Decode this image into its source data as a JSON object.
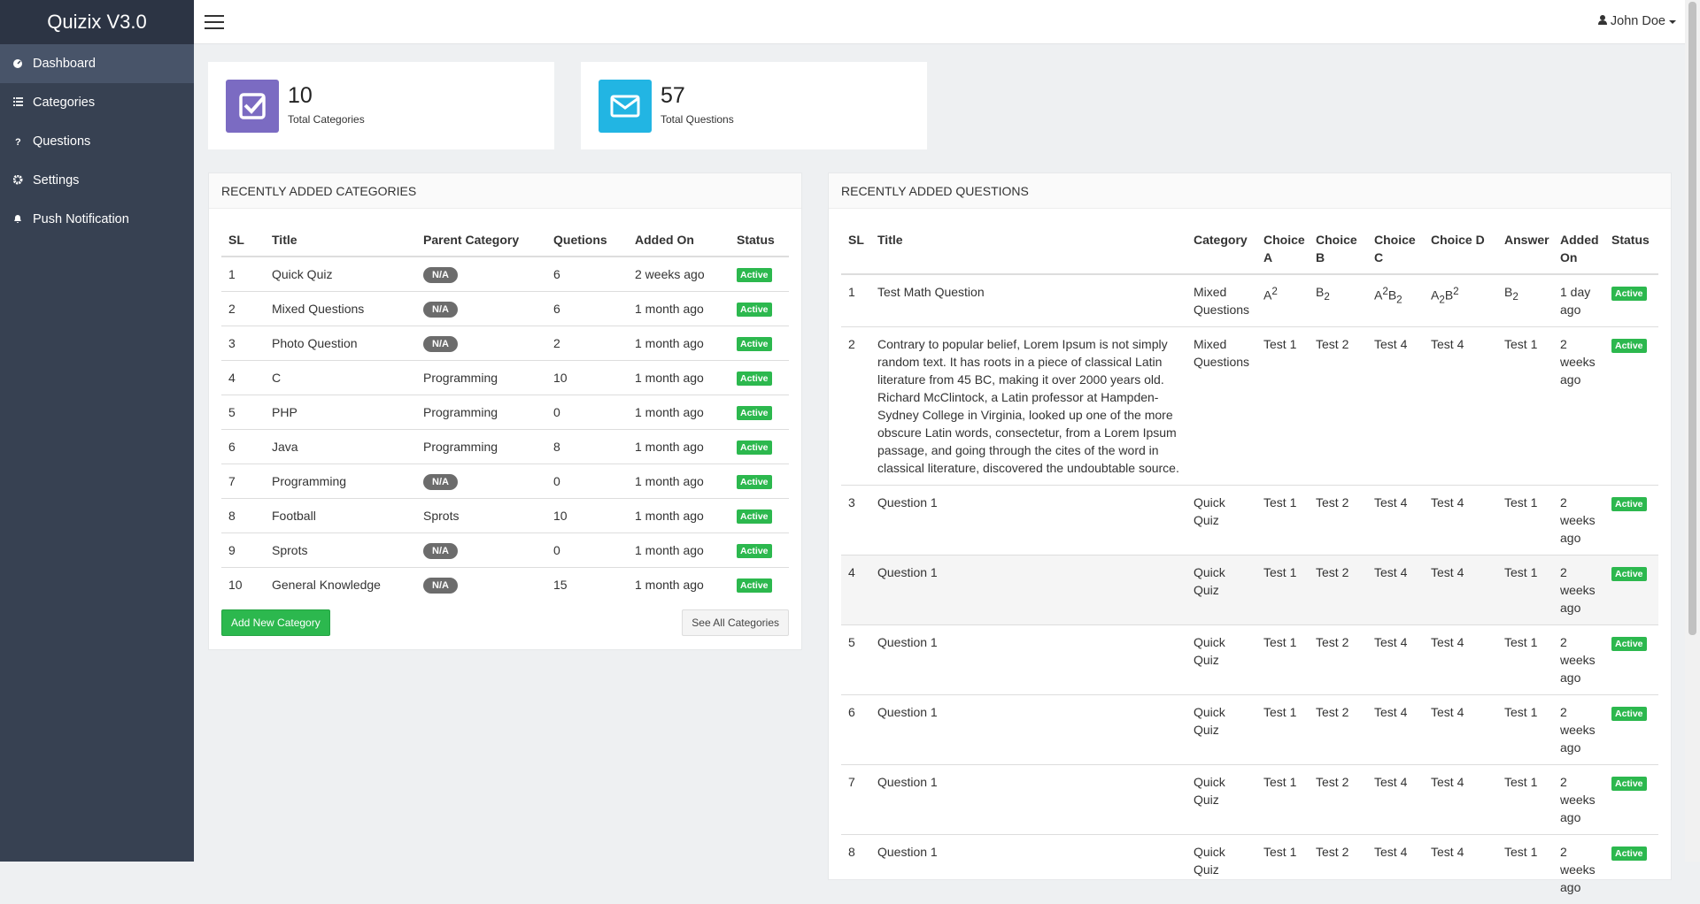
{
  "brand": "Quizix V3.0",
  "sidebar": [
    "Dashboard",
    "Categories",
    "Questions",
    "Settings",
    "Push Notification"
  ],
  "user": "John Doe",
  "stats": [
    {
      "value": "10",
      "label": "Total Categories"
    },
    {
      "value": "57",
      "label": "Total Questions"
    }
  ],
  "categories_panel": {
    "title": "RECENTLY ADDED CATEGORIES",
    "columns": [
      "SL",
      "Title",
      "Parent Category",
      "Quetions",
      "Added On",
      "Status"
    ],
    "rows": [
      [
        "1",
        "Quick Quiz",
        {
          "badge": "N/A"
        },
        "6",
        "2 weeks ago",
        {
          "status": "Active"
        }
      ],
      [
        "2",
        "Mixed Questions",
        {
          "badge": "N/A"
        },
        "6",
        "1 month ago",
        {
          "status": "Active"
        }
      ],
      [
        "3",
        "Photo Question",
        {
          "badge": "N/A"
        },
        "2",
        "1 month ago",
        {
          "status": "Active"
        }
      ],
      [
        "4",
        "C",
        "Programming",
        "10",
        "1 month ago",
        {
          "status": "Active"
        }
      ],
      [
        "5",
        "PHP",
        "Programming",
        "0",
        "1 month ago",
        {
          "status": "Active"
        }
      ],
      [
        "6",
        "Java",
        "Programming",
        "8",
        "1 month ago",
        {
          "status": "Active"
        }
      ],
      [
        "7",
        "Programming",
        {
          "badge": "N/A"
        },
        "0",
        "1 month ago",
        {
          "status": "Active"
        }
      ],
      [
        "8",
        "Football",
        "Sprots",
        "10",
        "1 month ago",
        {
          "status": "Active"
        }
      ],
      [
        "9",
        "Sprots",
        {
          "badge": "N/A"
        },
        "0",
        "1 month ago",
        {
          "status": "Active"
        }
      ],
      [
        "10",
        "General Knowledge",
        {
          "badge": "N/A"
        },
        "15",
        "1 month ago",
        {
          "status": "Active"
        }
      ]
    ],
    "buttons": [
      "Add New Category",
      "See All Categories"
    ]
  },
  "questions_panel": {
    "title": "RECENTLY ADDED QUESTIONS",
    "columns": [
      "SL",
      "Title",
      "Category",
      "Choice A",
      "Choice B",
      "Choice C",
      "Choice D",
      "Answer",
      "Added On",
      "Status"
    ],
    "rows": [
      [
        "1",
        "Test Math Question",
        "Mixed Questions",
        [
          {
            "text": "A"
          },
          {
            "sup": "2"
          }
        ],
        [
          {
            "text": "B"
          },
          {
            "sub": "2"
          }
        ],
        [
          {
            "text": "A"
          },
          {
            "sup": "2"
          },
          {
            "text": "B"
          },
          {
            "sub": "2"
          }
        ],
        [
          {
            "text": "A"
          },
          {
            "sub": "2"
          },
          {
            "text": "B"
          },
          {
            "sup": "2"
          }
        ],
        [
          {
            "text": "B"
          },
          {
            "sub": "2"
          }
        ],
        "1 day ago",
        {
          "status": "Active"
        }
      ],
      [
        "2",
        "Contrary to popular belief, Lorem Ipsum is not simply random text. It has roots in a piece of classical Latin literature from 45 BC, making it over 2000 years old. Richard McClintock, a Latin professor at Hampden-Sydney College in Virginia, looked up one of the more obscure Latin words, consectetur, from a Lorem Ipsum passage, and going through the cites of the word in classical literature, discovered the undoubtable source.",
        "Mixed Questions",
        "Test 1",
        "Test 2",
        "Test 4",
        "Test 4",
        "Test 1",
        "2 weeks ago",
        {
          "status": "Active"
        }
      ],
      [
        "3",
        "Question 1",
        "Quick Quiz",
        "Test 1",
        "Test 2",
        "Test 4",
        "Test 4",
        "Test 1",
        "2 weeks ago",
        {
          "status": "Active"
        }
      ],
      [
        "4",
        "Question 1",
        "Quick Quiz",
        "Test 1",
        "Test 2",
        "Test 4",
        "Test 4",
        "Test 1",
        "2 weeks ago",
        {
          "status": "Active"
        }
      ],
      [
        "5",
        "Question 1",
        "Quick Quiz",
        "Test 1",
        "Test 2",
        "Test 4",
        "Test 4",
        "Test 1",
        "2 weeks ago",
        {
          "status": "Active"
        }
      ],
      [
        "6",
        "Question 1",
        "Quick Quiz",
        "Test 1",
        "Test 2",
        "Test 4",
        "Test 4",
        "Test 1",
        "2 weeks ago",
        {
          "status": "Active"
        }
      ],
      [
        "7",
        "Question 1",
        "Quick Quiz",
        "Test 1",
        "Test 2",
        "Test 4",
        "Test 4",
        "Test 1",
        "2 weeks ago",
        {
          "status": "Active"
        }
      ],
      [
        "8",
        "Question 1",
        "Quick Quiz",
        "Test 1",
        "Test 2",
        "Test 4",
        "Test 4",
        "Test 1",
        "2 weeks ago",
        {
          "status": "Active"
        }
      ]
    ]
  }
}
